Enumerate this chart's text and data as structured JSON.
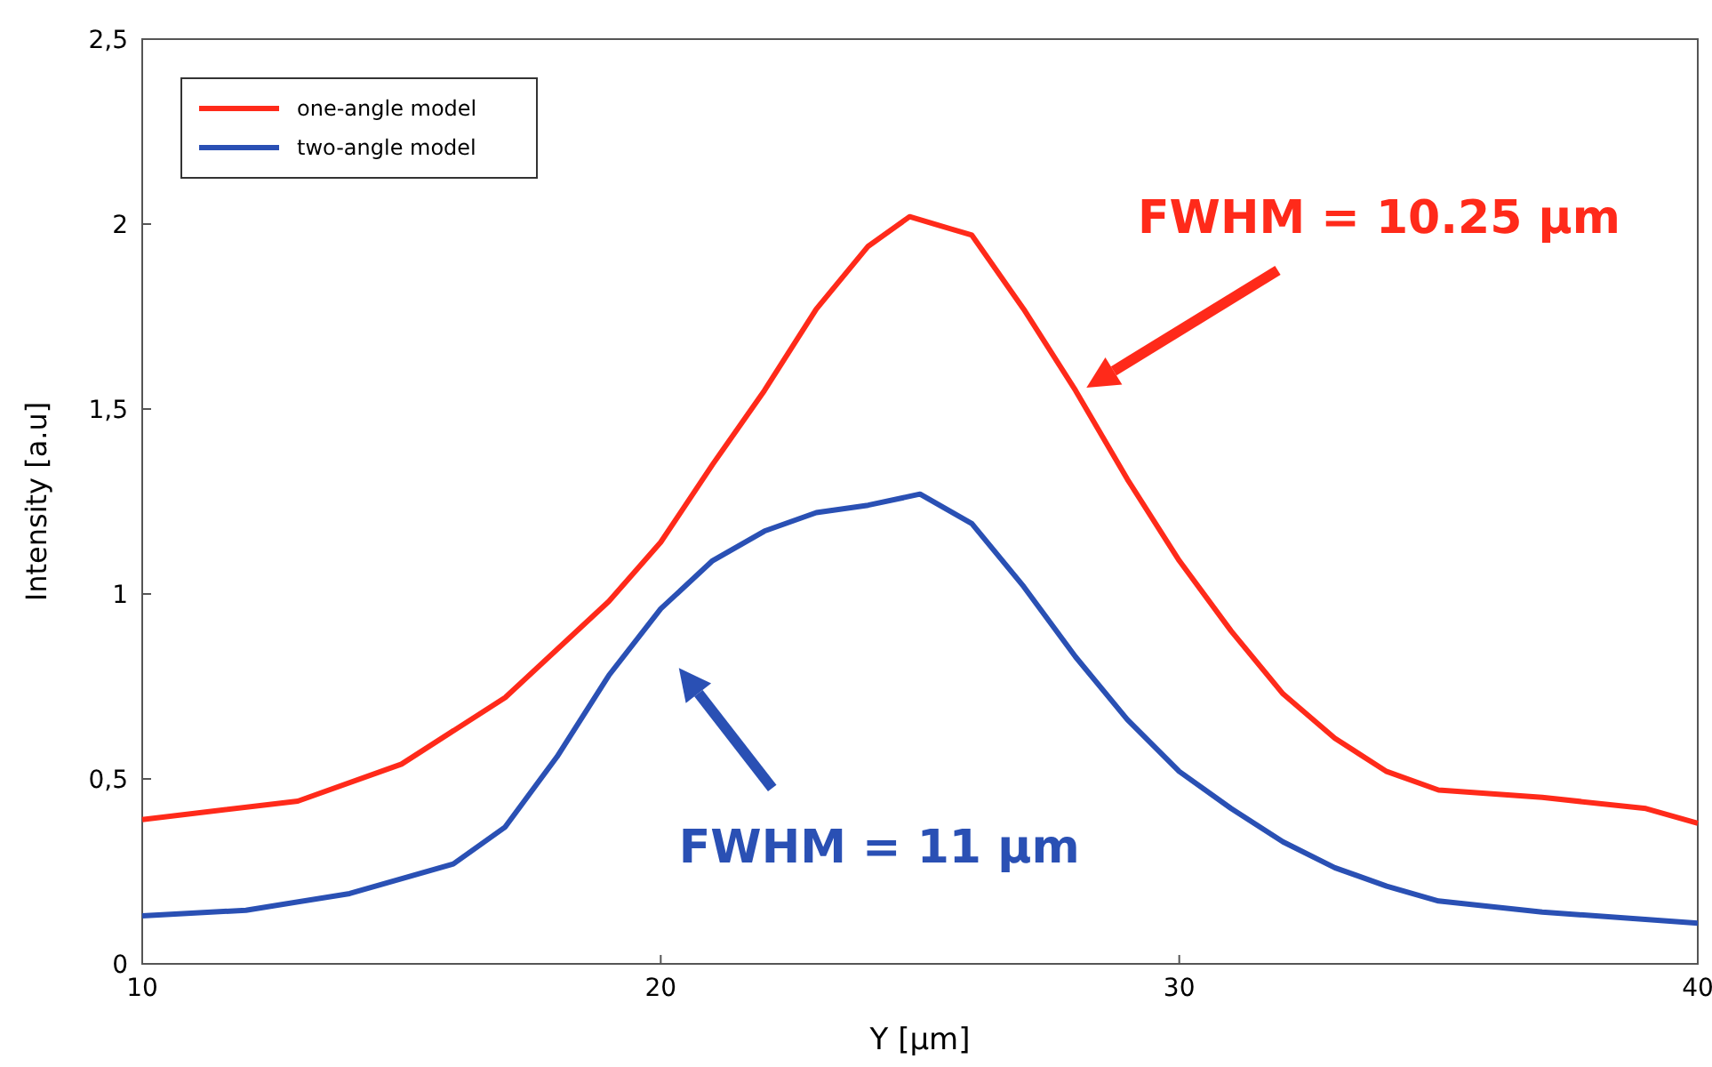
{
  "chart_data": {
    "type": "line",
    "xlabel": "Y [μm]",
    "ylabel": "Intensity [a.u]",
    "xlim": [
      10,
      40
    ],
    "ylim": [
      0,
      2.5
    ],
    "xticks": [
      10,
      20,
      30,
      40
    ],
    "yticks": [
      0,
      {
        "value": 0.5,
        "label": "0,5"
      },
      1,
      {
        "value": 1.5,
        "label": "1,5"
      },
      2,
      {
        "value": 2.5,
        "label": "2,5"
      }
    ],
    "grid": false,
    "legend": "top left",
    "marker": "none",
    "line_style": "solid",
    "x": [
      10,
      13,
      15,
      17,
      19,
      20,
      21,
      22,
      23,
      24,
      24.8,
      26,
      27,
      28,
      29,
      30,
      31,
      32,
      33,
      34,
      35,
      37,
      39,
      40
    ],
    "series": [
      {
        "name": "one-angle model",
        "color": "#ff2a1a",
        "values": [
          0.39,
          0.44,
          0.54,
          0.72,
          0.98,
          1.14,
          1.35,
          1.55,
          1.77,
          1.94,
          2.02,
          1.97,
          1.77,
          1.55,
          1.31,
          1.09,
          0.9,
          0.73,
          0.61,
          0.52,
          0.47,
          0.45,
          0.42,
          0.38
        ]
      },
      {
        "name": "two-angle model",
        "color": "#2a50b4",
        "x": [
          10,
          12,
          14,
          16,
          17,
          18,
          19,
          20,
          21,
          22,
          23,
          24,
          25,
          26,
          27,
          28,
          29,
          30,
          31,
          32,
          33,
          34,
          35,
          37,
          40
        ],
        "values": [
          0.13,
          0.145,
          0.19,
          0.27,
          0.37,
          0.56,
          0.78,
          0.96,
          1.09,
          1.17,
          1.22,
          1.24,
          1.27,
          1.19,
          1.02,
          0.83,
          0.66,
          0.52,
          0.42,
          0.33,
          0.26,
          0.21,
          0.17,
          0.14,
          0.11
        ]
      }
    ],
    "annotations": [
      "FWHM = 10.25 μm",
      "FWHM = 11 μm"
    ]
  }
}
